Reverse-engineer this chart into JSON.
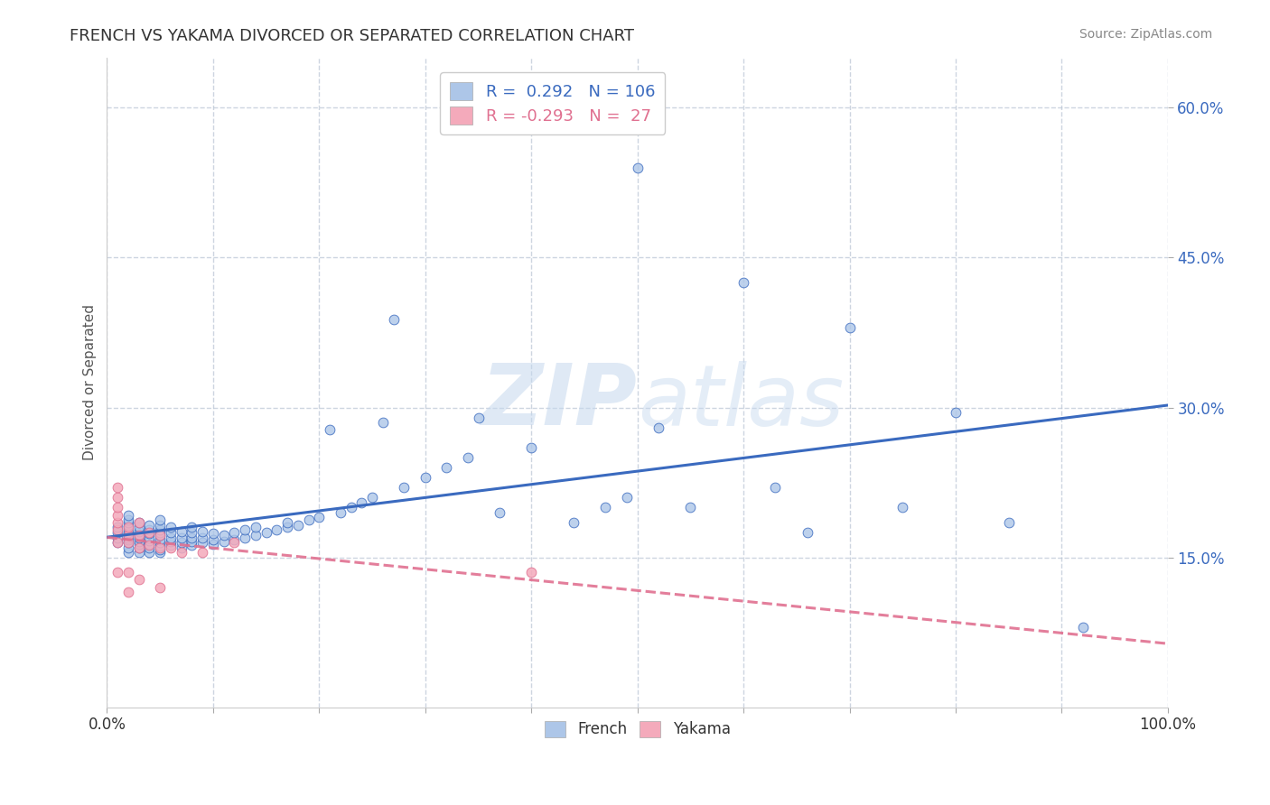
{
  "title": "FRENCH VS YAKAMA DIVORCED OR SEPARATED CORRELATION CHART",
  "source_text": "Source: ZipAtlas.com",
  "ylabel": "Divorced or Separated",
  "watermark": "ZIPatlas",
  "legend_labels": [
    "French",
    "Yakama"
  ],
  "r_french": 0.292,
  "n_french": 106,
  "r_yakama": -0.293,
  "n_yakama": 27,
  "french_color": "#adc6e8",
  "yakama_color": "#f4aabb",
  "french_line_color": "#3a6abf",
  "yakama_line_color": "#e07090",
  "background_color": "#ffffff",
  "xlim": [
    0,
    1
  ],
  "ylim": [
    0.0,
    0.65
  ],
  "xticks": [
    0.0,
    0.1,
    0.2,
    0.3,
    0.4,
    0.5,
    0.6,
    0.7,
    0.8,
    0.9,
    1.0
  ],
  "yticks": [
    0.15,
    0.3,
    0.45,
    0.6
  ],
  "ytick_labels": [
    "15.0%",
    "30.0%",
    "45.0%",
    "60.0%"
  ],
  "grid_color": "#b8c4d4",
  "grid_alpha": 0.7,
  "french_scatter_x": [
    0.01,
    0.01,
    0.01,
    0.01,
    0.02,
    0.02,
    0.02,
    0.02,
    0.02,
    0.02,
    0.02,
    0.02,
    0.02,
    0.02,
    0.02,
    0.02,
    0.03,
    0.03,
    0.03,
    0.03,
    0.03,
    0.03,
    0.03,
    0.03,
    0.03,
    0.04,
    0.04,
    0.04,
    0.04,
    0.04,
    0.04,
    0.04,
    0.04,
    0.05,
    0.05,
    0.05,
    0.05,
    0.05,
    0.05,
    0.05,
    0.05,
    0.05,
    0.05,
    0.06,
    0.06,
    0.06,
    0.06,
    0.06,
    0.07,
    0.07,
    0.07,
    0.07,
    0.08,
    0.08,
    0.08,
    0.08,
    0.08,
    0.09,
    0.09,
    0.09,
    0.1,
    0.1,
    0.1,
    0.11,
    0.11,
    0.12,
    0.12,
    0.13,
    0.13,
    0.14,
    0.14,
    0.15,
    0.16,
    0.17,
    0.17,
    0.18,
    0.19,
    0.2,
    0.21,
    0.22,
    0.23,
    0.24,
    0.25,
    0.26,
    0.27,
    0.28,
    0.3,
    0.32,
    0.34,
    0.35,
    0.37,
    0.4,
    0.44,
    0.47,
    0.49,
    0.5,
    0.52,
    0.55,
    0.6,
    0.63,
    0.66,
    0.7,
    0.75,
    0.8,
    0.85,
    0.92
  ],
  "french_scatter_y": [
    0.165,
    0.17,
    0.175,
    0.18,
    0.155,
    0.16,
    0.165,
    0.168,
    0.17,
    0.172,
    0.175,
    0.178,
    0.182,
    0.185,
    0.188,
    0.192,
    0.155,
    0.16,
    0.163,
    0.166,
    0.17,
    0.173,
    0.176,
    0.18,
    0.185,
    0.155,
    0.16,
    0.163,
    0.167,
    0.17,
    0.174,
    0.178,
    0.182,
    0.155,
    0.158,
    0.161,
    0.165,
    0.168,
    0.172,
    0.175,
    0.178,
    0.182,
    0.188,
    0.162,
    0.166,
    0.17,
    0.175,
    0.18,
    0.16,
    0.165,
    0.17,
    0.176,
    0.162,
    0.166,
    0.17,
    0.175,
    0.18,
    0.165,
    0.17,
    0.176,
    0.163,
    0.168,
    0.174,
    0.166,
    0.172,
    0.168,
    0.175,
    0.17,
    0.178,
    0.172,
    0.18,
    0.175,
    0.178,
    0.18,
    0.185,
    0.182,
    0.188,
    0.19,
    0.278,
    0.195,
    0.2,
    0.205,
    0.21,
    0.285,
    0.388,
    0.22,
    0.23,
    0.24,
    0.25,
    0.29,
    0.195,
    0.26,
    0.185,
    0.2,
    0.21,
    0.54,
    0.28,
    0.2,
    0.425,
    0.22,
    0.175,
    0.38,
    0.2,
    0.295,
    0.185,
    0.08
  ],
  "yakama_scatter_x": [
    0.01,
    0.01,
    0.01,
    0.01,
    0.01,
    0.01,
    0.01,
    0.01,
    0.02,
    0.02,
    0.02,
    0.02,
    0.02,
    0.03,
    0.03,
    0.03,
    0.03,
    0.04,
    0.04,
    0.05,
    0.05,
    0.05,
    0.06,
    0.07,
    0.09,
    0.12,
    0.4
  ],
  "yakama_scatter_y": [
    0.165,
    0.178,
    0.185,
    0.192,
    0.2,
    0.21,
    0.22,
    0.135,
    0.165,
    0.172,
    0.18,
    0.135,
    0.115,
    0.16,
    0.172,
    0.185,
    0.128,
    0.162,
    0.175,
    0.16,
    0.172,
    0.12,
    0.16,
    0.155,
    0.155,
    0.165,
    0.135
  ]
}
